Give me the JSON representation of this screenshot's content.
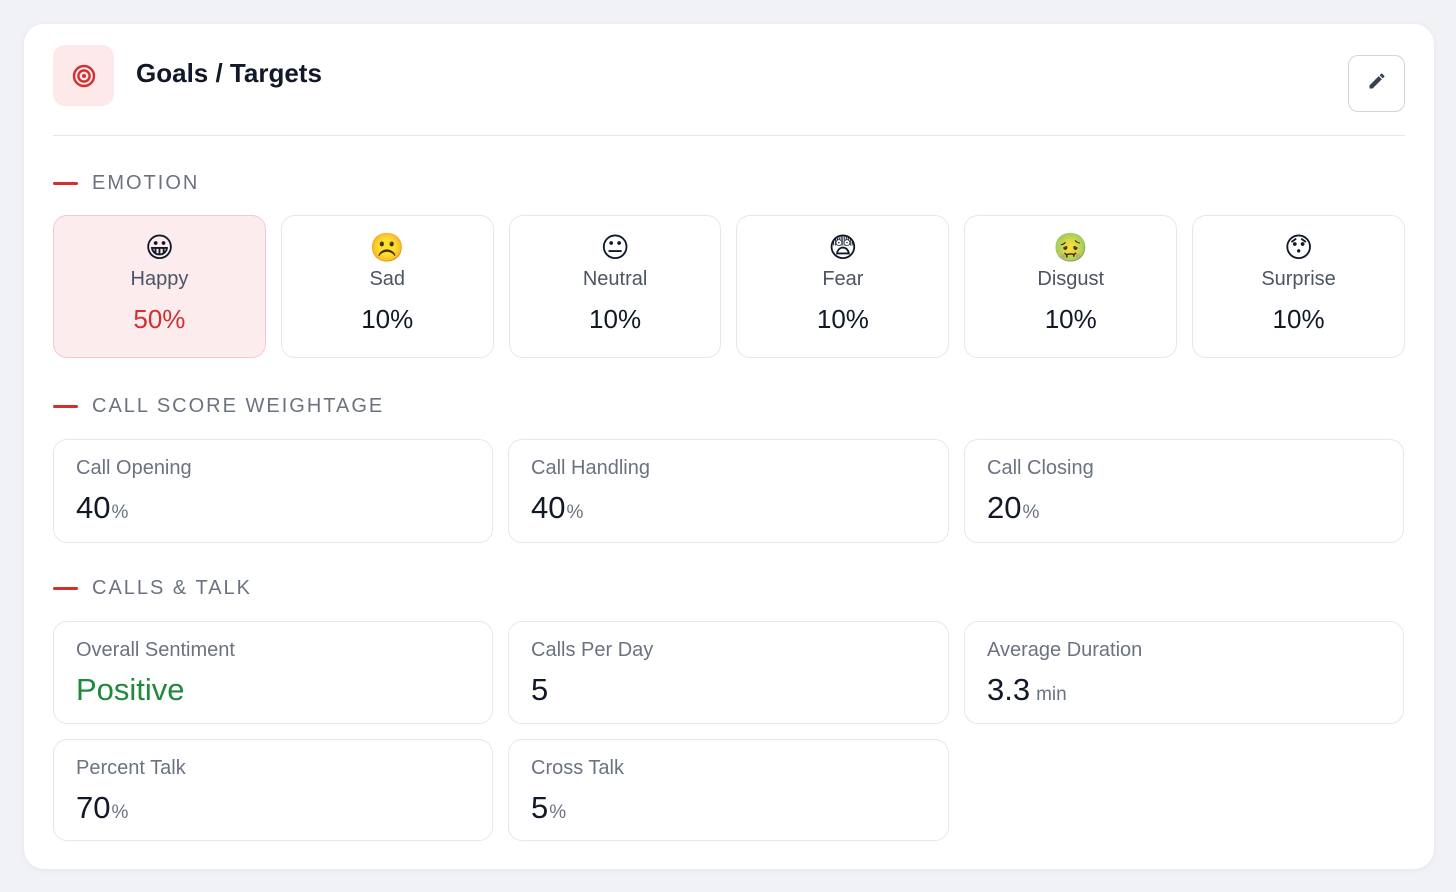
{
  "header": {
    "title": "Goals / Targets",
    "icon": "target-icon",
    "edit_icon": "pencil-icon"
  },
  "sections": {
    "emotion": "EMOTION",
    "call_score": "CALL SCORE WEIGHTAGE",
    "calls_talk": "CALLS & TALK"
  },
  "emotions": [
    {
      "emoji": "😀",
      "label": "Happy",
      "value": "50%",
      "selected": true
    },
    {
      "emoji": "☹️",
      "label": "Sad",
      "value": "10%",
      "selected": false
    },
    {
      "emoji": "😐",
      "label": "Neutral",
      "value": "10%",
      "selected": false
    },
    {
      "emoji": "😨",
      "label": "Fear",
      "value": "10%",
      "selected": false
    },
    {
      "emoji": "🤢",
      "label": "Disgust",
      "value": "10%",
      "selected": false
    },
    {
      "emoji": "😯",
      "label": "Surprise",
      "value": "10%",
      "selected": false
    }
  ],
  "call_score": [
    {
      "label": "Call Opening",
      "value": "40",
      "unit": "%"
    },
    {
      "label": "Call Handling",
      "value": "40",
      "unit": "%"
    },
    {
      "label": "Call Closing",
      "value": "20",
      "unit": "%"
    }
  ],
  "calls_talk": {
    "overall_sentiment": {
      "label": "Overall Sentiment",
      "value": "Positive"
    },
    "calls_per_day": {
      "label": "Calls Per Day",
      "value": "5"
    },
    "average_duration": {
      "label": "Average Duration",
      "value": "3.3",
      "unit": "min"
    },
    "percent_talk": {
      "label": "Percent Talk",
      "value": "70",
      "unit": "%"
    },
    "cross_talk": {
      "label": "Cross Talk",
      "value": "5",
      "unit": "%"
    }
  },
  "colors": {
    "accent": "#d32f2f",
    "positive": "#1f8a3b",
    "selected_bg": "#fdecee"
  }
}
